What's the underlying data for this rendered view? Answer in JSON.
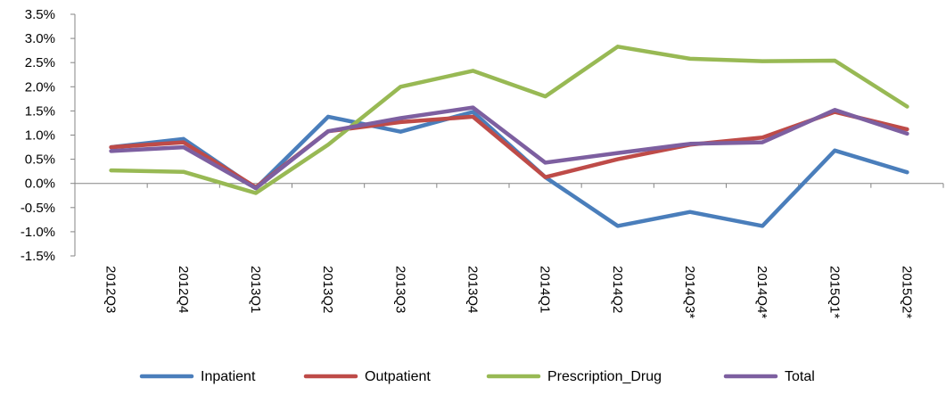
{
  "chart_data": {
    "type": "line",
    "categories": [
      "2012Q3",
      "2012Q4",
      "2013Q1",
      "2013Q2",
      "2013Q3",
      "2013Q4",
      "2014Q1",
      "2014Q2",
      "2014Q3*",
      "2014Q4*",
      "2015Q1*",
      "2015Q2*"
    ],
    "y_ticks": [
      "3.5%",
      "3.0%",
      "2.5%",
      "2.0%",
      "1.5%",
      "1.0%",
      "0.5%",
      "0.0%",
      "-0.5%",
      "-1.0%",
      "-1.5%"
    ],
    "ylim": [
      -1.5,
      3.5
    ],
    "y_unit": "%",
    "grid": false,
    "legend_position": "bottom",
    "series": [
      {
        "name": "Inpatient",
        "color": "#4a7ebb",
        "values": [
          0.75,
          0.92,
          -0.1,
          1.38,
          1.07,
          1.48,
          0.13,
          -0.88,
          -0.59,
          -0.88,
          0.68,
          0.23
        ]
      },
      {
        "name": "Outpatient",
        "color": "#be4b48",
        "values": [
          0.75,
          0.85,
          -0.08,
          1.08,
          1.27,
          1.38,
          0.13,
          0.5,
          0.8,
          0.95,
          1.48,
          1.12
        ]
      },
      {
        "name": "Prescription_Drug",
        "color": "#98b954",
        "values": [
          0.27,
          0.24,
          -0.2,
          0.8,
          2.0,
          2.33,
          1.8,
          2.83,
          2.58,
          2.53,
          2.54,
          1.59
        ]
      },
      {
        "name": "Total",
        "color": "#7d5fa0",
        "values": [
          0.67,
          0.75,
          -0.1,
          1.08,
          1.35,
          1.57,
          0.43,
          0.63,
          0.82,
          0.85,
          1.52,
          1.03
        ]
      }
    ]
  }
}
